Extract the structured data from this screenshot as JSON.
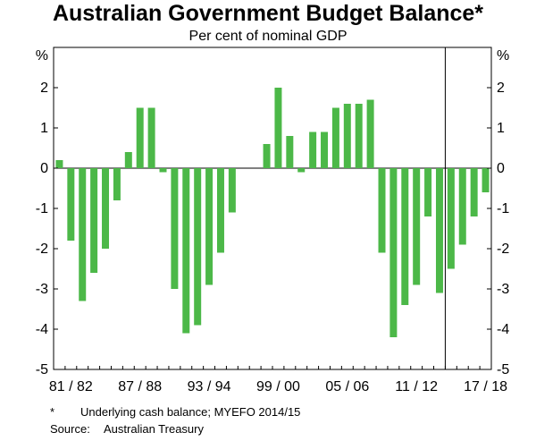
{
  "title": "Australian Government Budget Balance*",
  "subtitle": "Per cent of nominal GDP",
  "notes": {
    "footnote_marker": "*",
    "footnote_text": "Underlying cash balance; MYEFO 2014/15",
    "source_label": "Source:",
    "source_text": "Australian Treasury"
  },
  "chart_data": {
    "type": "bar",
    "title": "Australian Government Budget Balance*",
    "subtitle": "Per cent of nominal GDP",
    "ylabel_left": "%",
    "ylabel_right": "%",
    "ylim": [
      -5,
      3
    ],
    "yticks": [
      -5,
      -4,
      -3,
      -2,
      -1,
      0,
      1,
      2
    ],
    "xtick_labels": [
      "81/82",
      "87/88",
      "93/94",
      "99/00",
      "05/06",
      "11/12",
      "17/18"
    ],
    "bar_color": "#4cb848",
    "forecast_divider_after": "2013/14",
    "categories": [
      "1980/81",
      "1981/82",
      "1982/83",
      "1983/84",
      "1984/85",
      "1985/86",
      "1986/87",
      "1987/88",
      "1988/89",
      "1989/90",
      "1990/91",
      "1991/92",
      "1992/93",
      "1993/94",
      "1994/95",
      "1995/96",
      "1996/97",
      "1997/98",
      "1998/99",
      "1999/00",
      "2000/01",
      "2001/02",
      "2002/03",
      "2003/04",
      "2004/05",
      "2005/06",
      "2006/07",
      "2007/08",
      "2008/09",
      "2009/10",
      "2010/11",
      "2011/12",
      "2012/13",
      "2013/14",
      "2014/15",
      "2015/16",
      "2016/17",
      "2017/18"
    ],
    "values": [
      0.2,
      -1.8,
      -3.3,
      -2.6,
      -2.0,
      -0.8,
      0.4,
      1.5,
      1.5,
      -0.1,
      -3.0,
      -4.1,
      -3.9,
      -2.9,
      -2.1,
      -1.1,
      0.0,
      0.0,
      0.6,
      2.0,
      0.8,
      -0.1,
      0.9,
      0.9,
      1.5,
      1.6,
      1.6,
      1.7,
      -2.1,
      -4.2,
      -3.4,
      -2.9,
      -1.2,
      -3.1,
      -2.5,
      -1.9,
      -1.2,
      -0.6
    ]
  }
}
